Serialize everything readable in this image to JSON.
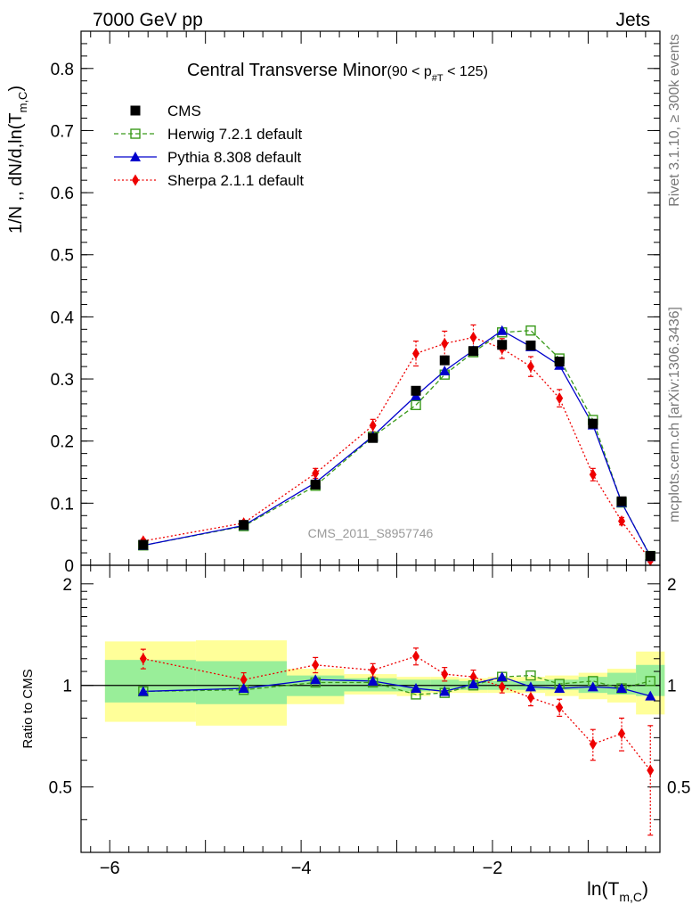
{
  "header": {
    "left": "7000 GeV pp",
    "right": "Jets"
  },
  "side_labels": {
    "rivet": "Rivet 3.1.10, ≥ 300k events",
    "mcplots": "mcplots.cern.ch [arXiv:1306.3436]"
  },
  "chart_data": [
    {
      "type": "scatter",
      "title": "Central Transverse Minor",
      "title_range": "(90 < p",
      "title_sub": "#T",
      "title_end": " < 125)",
      "ylabel": "1/N ,, dN/d,ln(T",
      "ylabel_sub": "m,C",
      "ylabel_end": ")",
      "watermark": "CMS_2011_S8957746",
      "xlim": [
        -6.3,
        -0.25
      ],
      "ylim": [
        0,
        0.86
      ],
      "yticks": [
        0,
        0.1,
        0.2,
        0.3,
        0.4,
        0.5,
        0.6,
        0.7,
        0.8
      ],
      "ytick_labels": [
        "0",
        "0.1",
        "0.2",
        "0.3",
        "0.4",
        "0.5",
        "0.6",
        "0.7",
        "0.8"
      ],
      "legend_position": "top-left",
      "x": [
        -5.65,
        -4.6,
        -3.85,
        -3.25,
        -2.8,
        -2.5,
        -2.2,
        -1.9,
        -1.6,
        -1.3,
        -0.95,
        -0.65,
        -0.35
      ],
      "series": [
        {
          "name": "CMS",
          "color": "#000000",
          "marker": "filled-square",
          "line": "none",
          "values": [
            0.033,
            0.065,
            0.13,
            0.205,
            0.281,
            0.33,
            0.345,
            0.355,
            0.354,
            0.328,
            0.228,
            0.103,
            0.015
          ]
        },
        {
          "name": "Herwig 7.2.1 default",
          "color": "#3a9a1a",
          "marker": "open-square",
          "line": "dashed",
          "values": [
            0.032,
            0.063,
            0.128,
            0.207,
            0.258,
            0.307,
            0.343,
            0.375,
            0.378,
            0.333,
            0.234,
            0.101,
            0.015
          ]
        },
        {
          "name": "Pythia 8.308 default",
          "color": "#0000cc",
          "marker": "filled-triangle",
          "line": "solid",
          "values": [
            0.032,
            0.064,
            0.133,
            0.208,
            0.273,
            0.313,
            0.346,
            0.378,
            0.352,
            0.322,
            0.226,
            0.101,
            0.014
          ]
        },
        {
          "name": "Sherpa 2.1.1 default",
          "color": "#ee0000",
          "marker": "filled-diamond",
          "line": "dotted",
          "values": [
            0.039,
            0.068,
            0.148,
            0.225,
            0.341,
            0.357,
            0.367,
            0.349,
            0.32,
            0.269,
            0.146,
            0.071,
            0.008
          ],
          "errors": [
            0.003,
            0.004,
            0.008,
            0.01,
            0.02,
            0.02,
            0.02,
            0.016,
            0.016,
            0.014,
            0.01,
            0.006,
            0.003
          ]
        }
      ]
    },
    {
      "type": "scatter",
      "ylabel": "Ratio to CMS",
      "xlabel": "ln(T",
      "xlabel_sub": "m,C",
      "xlabel_end": ")",
      "xlim": [
        -6.3,
        -0.25
      ],
      "ylim": [
        0.32,
        2.27
      ],
      "xticks": [
        -6,
        -4,
        -2
      ],
      "xtick_labels": [
        "−6",
        "−4",
        "−2"
      ],
      "yticks": [
        0.5,
        1,
        2
      ],
      "ytick_labels": [
        "0.5",
        "1",
        "2"
      ],
      "bands": [
        {
          "x0": -6.05,
          "x1": -5.1,
          "inner": [
            0.89,
            1.19
          ],
          "outer": [
            0.78,
            1.35
          ]
        },
        {
          "x0": -5.1,
          "x1": -4.15,
          "inner": [
            0.88,
            1.18
          ],
          "outer": [
            0.76,
            1.36
          ]
        },
        {
          "x0": -4.15,
          "x1": -3.55,
          "inner": [
            0.93,
            1.07
          ],
          "outer": [
            0.88,
            1.12
          ]
        },
        {
          "x0": -3.55,
          "x1": -3.0,
          "inner": [
            0.96,
            1.05
          ],
          "outer": [
            0.94,
            1.08
          ]
        },
        {
          "x0": -3.0,
          "x1": -2.65,
          "inner": [
            0.96,
            1.04
          ],
          "outer": [
            0.93,
            1.06
          ]
        },
        {
          "x0": -2.65,
          "x1": -2.35,
          "inner": [
            0.97,
            1.04
          ],
          "outer": [
            0.95,
            1.06
          ]
        },
        {
          "x0": -2.35,
          "x1": -2.05,
          "inner": [
            0.97,
            1.03
          ],
          "outer": [
            0.95,
            1.05
          ]
        },
        {
          "x0": -2.05,
          "x1": -1.75,
          "inner": [
            0.97,
            1.03
          ],
          "outer": [
            0.95,
            1.06
          ]
        },
        {
          "x0": -1.75,
          "x1": -1.45,
          "inner": [
            0.97,
            1.03
          ],
          "outer": [
            0.95,
            1.06
          ]
        },
        {
          "x0": -1.45,
          "x1": -1.1,
          "inner": [
            0.97,
            1.04
          ],
          "outer": [
            0.93,
            1.07
          ]
        },
        {
          "x0": -1.1,
          "x1": -0.8,
          "inner": [
            0.95,
            1.06
          ],
          "outer": [
            0.91,
            1.09
          ]
        },
        {
          "x0": -0.8,
          "x1": -0.5,
          "inner": [
            0.94,
            1.09
          ],
          "outer": [
            0.89,
            1.12
          ]
        },
        {
          "x0": -0.5,
          "x1": -0.2,
          "inner": [
            0.93,
            1.15
          ],
          "outer": [
            0.82,
            1.26
          ]
        }
      ],
      "x": [
        -5.65,
        -4.6,
        -3.85,
        -3.25,
        -2.8,
        -2.5,
        -2.2,
        -1.9,
        -1.6,
        -1.3,
        -0.95,
        -0.65,
        -0.35
      ],
      "series": [
        {
          "name": "Herwig 7.2.1 default",
          "color": "#3a9a1a",
          "marker": "open-square",
          "line": "dashed",
          "values": [
            0.96,
            0.97,
            1.02,
            1.02,
            0.94,
            0.95,
            1.0,
            1.06,
            1.07,
            1.01,
            1.03,
            0.98,
            1.03
          ]
        },
        {
          "name": "Pythia 8.308 default",
          "color": "#0000cc",
          "marker": "filled-triangle",
          "line": "solid",
          "values": [
            0.96,
            0.98,
            1.04,
            1.03,
            0.98,
            0.96,
            1.01,
            1.06,
            0.99,
            0.98,
            0.99,
            0.98,
            0.93
          ]
        },
        {
          "name": "Sherpa 2.1.1 default",
          "color": "#ee0000",
          "marker": "filled-diamond",
          "line": "dotted",
          "values": [
            1.2,
            1.04,
            1.15,
            1.11,
            1.22,
            1.08,
            1.06,
            0.99,
            0.92,
            0.86,
            0.67,
            0.72,
            0.56
          ],
          "errors": [
            0.08,
            0.05,
            0.06,
            0.05,
            0.07,
            0.05,
            0.05,
            0.04,
            0.05,
            0.05,
            0.07,
            0.08,
            0.2
          ]
        }
      ]
    }
  ]
}
